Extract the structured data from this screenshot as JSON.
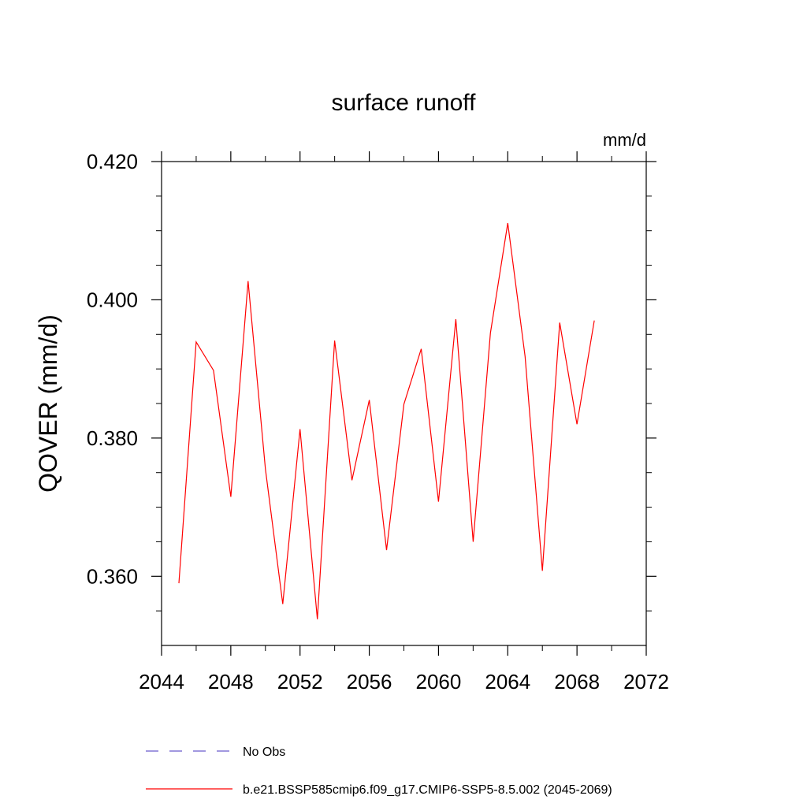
{
  "chart_data": {
    "type": "line",
    "title": "surface runoff",
    "units_label": "mm/d",
    "ylabel": "QOVER  (mm/d)",
    "xlabel": "",
    "xlim": [
      2044,
      2072
    ],
    "ylim": [
      0.35,
      0.42
    ],
    "x_ticks": [
      2044,
      2048,
      2052,
      2056,
      2060,
      2064,
      2068,
      2072
    ],
    "x_tick_labels": [
      "2044",
      "2048",
      "2052",
      "2056",
      "2060",
      "2064",
      "2068",
      "2072"
    ],
    "y_ticks": [
      0.36,
      0.38,
      0.4,
      0.42
    ],
    "y_tick_labels": [
      "0.360",
      "0.380",
      "0.400",
      "0.420"
    ],
    "grid": false,
    "legend_position": "bottom",
    "series": [
      {
        "name": "b.e21.BSSP585cmip6.f09_g17.CMIP6-SSP5-8.5.002 (2045-2069)",
        "color": "#ff0000",
        "style": "solid",
        "x": [
          2045,
          2046,
          2047,
          2048,
          2049,
          2050,
          2051,
          2052,
          2053,
          2054,
          2055,
          2056,
          2057,
          2058,
          2059,
          2060,
          2061,
          2062,
          2063,
          2064,
          2065,
          2066,
          2067,
          2068,
          2069
        ],
        "values": [
          0.359,
          0.3939,
          0.3898,
          0.3715,
          0.4027,
          0.3755,
          0.356,
          0.3813,
          0.3538,
          0.3941,
          0.3739,
          0.3855,
          0.3638,
          0.3849,
          0.3929,
          0.3708,
          0.3972,
          0.365,
          0.3952,
          0.4111,
          0.3918,
          0.3608,
          0.3967,
          0.382,
          0.397
        ]
      }
    ],
    "legend": [
      {
        "label": "No Obs",
        "color": "#6a5acd",
        "style": "dashed"
      },
      {
        "label": "b.e21.BSSP585cmip6.f09_g17.CMIP6-SSP5-8.5.002 (2045-2069)",
        "color": "#ff0000",
        "style": "solid"
      }
    ]
  }
}
